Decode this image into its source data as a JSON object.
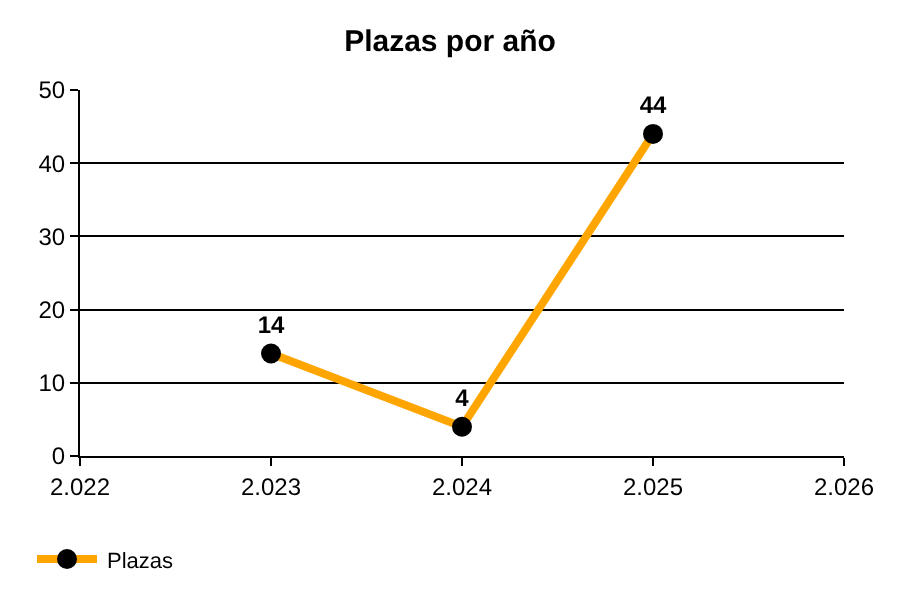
{
  "chart_data": {
    "type": "line",
    "title": "Plazas por año",
    "x": [
      2023,
      2024,
      2025
    ],
    "series": [
      {
        "name": "Plazas",
        "color": "#ffa500",
        "colors": [
          "#000000",
          "#000000",
          "#000000"
        ],
        "values": [
          14,
          4,
          44
        ]
      }
    ],
    "xlim": [
      2022,
      2026
    ],
    "xticks": [
      {
        "value": 2022,
        "label": "2.022"
      },
      {
        "value": 2023,
        "label": "2.023"
      },
      {
        "value": 2024,
        "label": "2.024"
      },
      {
        "value": 2025,
        "label": "2.025"
      },
      {
        "value": 2026,
        "label": "2.026"
      }
    ],
    "ylim": [
      0,
      50
    ],
    "yticks": [
      0,
      10,
      20,
      30,
      40,
      50
    ],
    "grid": "y",
    "legend": "bottom left",
    "marker": "circle",
    "line_style": "solid",
    "data_labels": true
  }
}
